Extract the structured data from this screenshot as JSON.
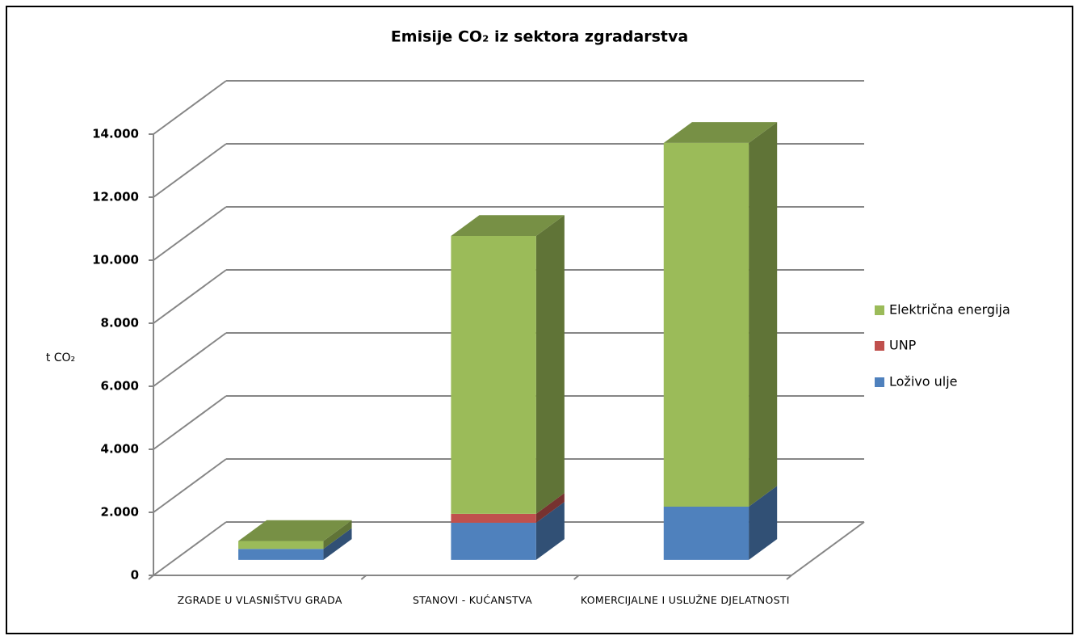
{
  "chart_data": {
    "type": "bar3d_stacked",
    "title": "Emisije CO₂ iz sektora zgradarstva",
    "y_label": "t CO₂",
    "categories": [
      "ZGRADE U VLASNIŠTVU GRADA",
      "STANOVI - KUĆANSTVA",
      "KOMERCIJALNE I USLUŽNE DJELATNOSTI"
    ],
    "series": [
      {
        "name": "Loživo ulje",
        "color": "#4f81bd",
        "values": [
          350,
          1180,
          1690
        ]
      },
      {
        "name": "UNP",
        "color": "#c0504d",
        "values": [
          0,
          280,
          0
        ]
      },
      {
        "name": "Električna energija",
        "color": "#9bbb59",
        "values": [
          250,
          8820,
          11540
        ]
      }
    ],
    "ylim": [
      0,
      14000
    ],
    "yticks": [
      0,
      {
        "value": 2000,
        "label": "2.000"
      },
      {
        "value": 4000,
        "label": "4.000"
      },
      {
        "value": 6000,
        "label": "6.000"
      },
      {
        "value": 8000,
        "label": "8.000"
      },
      {
        "value": 10000,
        "label": "10.000"
      },
      {
        "value": 12000,
        "label": "12.000"
      },
      {
        "value": 14000,
        "label": "14.000"
      }
    ],
    "grid": true
  }
}
